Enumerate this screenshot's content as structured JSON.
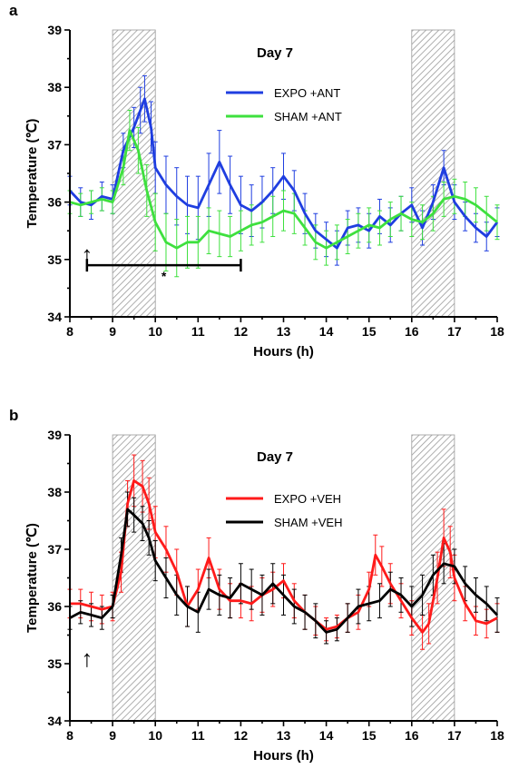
{
  "chart_data": [
    {
      "panel": "a",
      "type": "line",
      "title": "Day 7",
      "xlabel": "Hours (h)",
      "ylabel": "Temperature (℃)",
      "xlim": [
        8,
        18
      ],
      "ylim": [
        34,
        39
      ],
      "xticks": [
        "8",
        "9",
        "10",
        "11",
        "12",
        "13",
        "14",
        "15",
        "16",
        "17",
        "18"
      ],
      "yticks": [
        "34",
        "35",
        "36",
        "37",
        "38",
        "39"
      ],
      "shaded_intervals": [
        [
          9,
          10
        ],
        [
          16,
          17
        ]
      ],
      "legend_position": "top-center",
      "annotations": {
        "arrow_x": 8.4,
        "arrow_label": "↑",
        "bracket": [
          8.4,
          12
        ],
        "bracket_y": 34.9,
        "significance": "*"
      },
      "series": [
        {
          "name": "EXPO +ANT",
          "color": "#1f3ee0",
          "x": [
            8,
            8.25,
            8.5,
            8.75,
            9,
            9.25,
            9.5,
            9.65,
            9.75,
            9.9,
            10,
            10.25,
            10.5,
            10.75,
            11,
            11.25,
            11.5,
            11.75,
            12,
            12.25,
            12.5,
            12.75,
            13,
            13.25,
            13.5,
            13.75,
            14,
            14.25,
            14.5,
            14.75,
            15,
            15.25,
            15.5,
            15.75,
            16,
            16.25,
            16.5,
            16.75,
            17,
            17.25,
            17.5,
            17.75,
            18
          ],
          "values": [
            36.2,
            36.0,
            35.95,
            36.1,
            36.05,
            36.9,
            37.3,
            37.6,
            37.8,
            37.3,
            36.6,
            36.3,
            36.1,
            35.95,
            35.9,
            36.3,
            36.7,
            36.3,
            35.95,
            35.85,
            36.0,
            36.2,
            36.45,
            36.2,
            35.8,
            35.5,
            35.35,
            35.2,
            35.55,
            35.6,
            35.5,
            35.75,
            35.6,
            35.8,
            35.95,
            35.55,
            36.0,
            36.6,
            36.0,
            35.75,
            35.55,
            35.4,
            35.65
          ],
          "err": [
            0.25,
            0.25,
            0.25,
            0.25,
            0.25,
            0.3,
            0.35,
            0.4,
            0.4,
            0.45,
            0.45,
            0.5,
            0.5,
            0.5,
            0.55,
            0.55,
            0.55,
            0.5,
            0.5,
            0.45,
            0.45,
            0.4,
            0.4,
            0.35,
            0.35,
            0.3,
            0.3,
            0.3,
            0.3,
            0.3,
            0.3,
            0.3,
            0.3,
            0.3,
            0.3,
            0.3,
            0.3,
            0.3,
            0.3,
            0.25,
            0.25,
            0.25,
            0.25
          ]
        },
        {
          "name": "SHAM +ANT",
          "color": "#3ee03e",
          "x": [
            8,
            8.25,
            8.5,
            8.75,
            9,
            9.25,
            9.4,
            9.6,
            9.8,
            10,
            10.25,
            10.5,
            10.75,
            11,
            11.25,
            11.5,
            11.75,
            12,
            12.25,
            12.5,
            12.75,
            13,
            13.25,
            13.5,
            13.75,
            14,
            14.25,
            14.5,
            14.75,
            15,
            15.25,
            15.5,
            15.75,
            16,
            16.25,
            16.5,
            16.75,
            17,
            17.25,
            17.5,
            17.75,
            18
          ],
          "values": [
            36.0,
            35.95,
            36.0,
            36.05,
            36.0,
            36.6,
            37.25,
            36.9,
            36.2,
            35.65,
            35.3,
            35.2,
            35.3,
            35.3,
            35.5,
            35.45,
            35.4,
            35.5,
            35.6,
            35.65,
            35.75,
            35.85,
            35.8,
            35.55,
            35.3,
            35.2,
            35.3,
            35.4,
            35.5,
            35.6,
            35.55,
            35.7,
            35.8,
            35.7,
            35.65,
            35.8,
            36.05,
            36.1,
            36.05,
            35.95,
            35.8,
            35.65
          ],
          "err": [
            0.2,
            0.2,
            0.2,
            0.2,
            0.2,
            0.3,
            0.35,
            0.4,
            0.45,
            0.5,
            0.5,
            0.5,
            0.45,
            0.45,
            0.4,
            0.4,
            0.35,
            0.35,
            0.35,
            0.35,
            0.35,
            0.35,
            0.35,
            0.3,
            0.3,
            0.3,
            0.3,
            0.3,
            0.3,
            0.3,
            0.3,
            0.3,
            0.3,
            0.3,
            0.3,
            0.3,
            0.3,
            0.3,
            0.3,
            0.3,
            0.3,
            0.3
          ]
        }
      ]
    },
    {
      "panel": "b",
      "type": "line",
      "title": "Day 7",
      "xlabel": "Hours (h)",
      "ylabel": "Temperature (℃)",
      "xlim": [
        8,
        18
      ],
      "ylim": [
        34,
        39
      ],
      "xticks": [
        "8",
        "9",
        "10",
        "11",
        "12",
        "13",
        "14",
        "15",
        "16",
        "17",
        "18"
      ],
      "yticks": [
        "34",
        "35",
        "36",
        "37",
        "38",
        "39"
      ],
      "shaded_intervals": [
        [
          9,
          10
        ],
        [
          16,
          17
        ]
      ],
      "legend_position": "top-center",
      "annotations": {
        "arrow_x": 8.4,
        "arrow_label": "↑"
      },
      "series": [
        {
          "name": "EXPO +VEH",
          "color": "#ff1a1a",
          "x": [
            8,
            8.25,
            8.5,
            8.75,
            9,
            9.2,
            9.35,
            9.5,
            9.7,
            9.85,
            10,
            10.25,
            10.5,
            10.75,
            11,
            11.25,
            11.5,
            11.75,
            12,
            12.25,
            12.5,
            12.75,
            13,
            13.25,
            13.5,
            13.75,
            14,
            14.25,
            14.5,
            14.75,
            15,
            15.15,
            15.3,
            15.5,
            15.75,
            16,
            16.25,
            16.4,
            16.6,
            16.75,
            16.9,
            17,
            17.25,
            17.5,
            17.75,
            18
          ],
          "values": [
            36.05,
            36.05,
            36.0,
            35.95,
            36.0,
            36.6,
            37.8,
            38.2,
            38.1,
            37.8,
            37.3,
            37.0,
            36.6,
            36.0,
            36.3,
            36.85,
            36.3,
            36.1,
            36.1,
            36.05,
            36.2,
            36.3,
            36.45,
            36.1,
            35.9,
            35.75,
            35.6,
            35.65,
            35.8,
            35.9,
            36.3,
            36.9,
            36.7,
            36.4,
            36.1,
            35.8,
            35.55,
            35.7,
            36.5,
            37.2,
            36.95,
            36.5,
            36.05,
            35.75,
            35.7,
            35.8
          ],
          "err": [
            0.25,
            0.25,
            0.25,
            0.25,
            0.25,
            0.35,
            0.4,
            0.45,
            0.45,
            0.45,
            0.45,
            0.4,
            0.4,
            0.35,
            0.35,
            0.35,
            0.35,
            0.3,
            0.3,
            0.3,
            0.3,
            0.3,
            0.3,
            0.3,
            0.3,
            0.25,
            0.2,
            0.2,
            0.25,
            0.3,
            0.3,
            0.35,
            0.35,
            0.35,
            0.3,
            0.3,
            0.3,
            0.35,
            0.45,
            0.5,
            0.45,
            0.4,
            0.3,
            0.25,
            0.25,
            0.25
          ]
        },
        {
          "name": "SHAM +VEH",
          "color": "#000000",
          "x": [
            8,
            8.25,
            8.5,
            8.75,
            9,
            9.2,
            9.35,
            9.5,
            9.7,
            9.85,
            10,
            10.25,
            10.5,
            10.75,
            11,
            11.25,
            11.5,
            11.75,
            12,
            12.25,
            12.5,
            12.75,
            13,
            13.25,
            13.5,
            13.75,
            14,
            14.25,
            14.5,
            14.75,
            15,
            15.25,
            15.5,
            15.75,
            16,
            16.25,
            16.5,
            16.75,
            17,
            17.25,
            17.5,
            17.75,
            18
          ],
          "values": [
            35.8,
            35.9,
            35.85,
            35.8,
            36.0,
            36.9,
            37.7,
            37.6,
            37.45,
            37.2,
            36.8,
            36.5,
            36.2,
            36.0,
            35.9,
            36.3,
            36.2,
            36.15,
            36.4,
            36.3,
            36.2,
            36.4,
            36.2,
            36.0,
            35.9,
            35.75,
            35.55,
            35.6,
            35.8,
            36.0,
            36.05,
            36.1,
            36.3,
            36.2,
            36.0,
            36.2,
            36.55,
            36.75,
            36.7,
            36.4,
            36.2,
            36.05,
            35.85
          ],
          "err": [
            0.2,
            0.2,
            0.2,
            0.2,
            0.2,
            0.3,
            0.3,
            0.3,
            0.3,
            0.3,
            0.35,
            0.35,
            0.35,
            0.35,
            0.35,
            0.35,
            0.35,
            0.35,
            0.35,
            0.35,
            0.35,
            0.35,
            0.35,
            0.3,
            0.3,
            0.3,
            0.2,
            0.2,
            0.25,
            0.3,
            0.3,
            0.3,
            0.3,
            0.3,
            0.35,
            0.35,
            0.35,
            0.35,
            0.3,
            0.3,
            0.3,
            0.3,
            0.3
          ]
        }
      ]
    }
  ]
}
